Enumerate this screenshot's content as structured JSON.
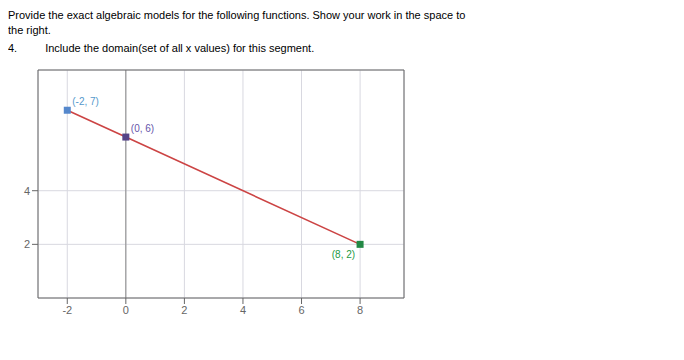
{
  "chart_data": {
    "type": "line",
    "title": "Provide the exact algebraic models for the following functions.  Show your work in the space to",
    "subtitle": "the right.",
    "annotations": [
      {
        "text": "4."
      },
      {
        "text": "Include the domain(set of all x values) for this segment."
      },
      {
        "text": "(-2, 7)",
        "x": -2,
        "y": 7,
        "color": "#5599cc"
      },
      {
        "text": "(0, 6)",
        "x": 0,
        "y": 6,
        "color": "#6655aa"
      },
      {
        "text": "(8, 2)",
        "x": 8,
        "y": 2,
        "color": "#229944"
      }
    ],
    "x": [
      -2,
      0,
      8
    ],
    "series": [
      {
        "values": [
          7,
          6,
          2
        ],
        "color": "#cc4444",
        "colors": [
          "#5588cc",
          "#554488",
          "#228844"
        ],
        "marker": "square"
      }
    ],
    "xlim": [
      -3,
      9.5
    ],
    "ylim": [
      0,
      8.5
    ],
    "xticks": [
      -2,
      0,
      2,
      4,
      6,
      8
    ],
    "yticks": [
      2,
      4
    ],
    "grid": true
  }
}
